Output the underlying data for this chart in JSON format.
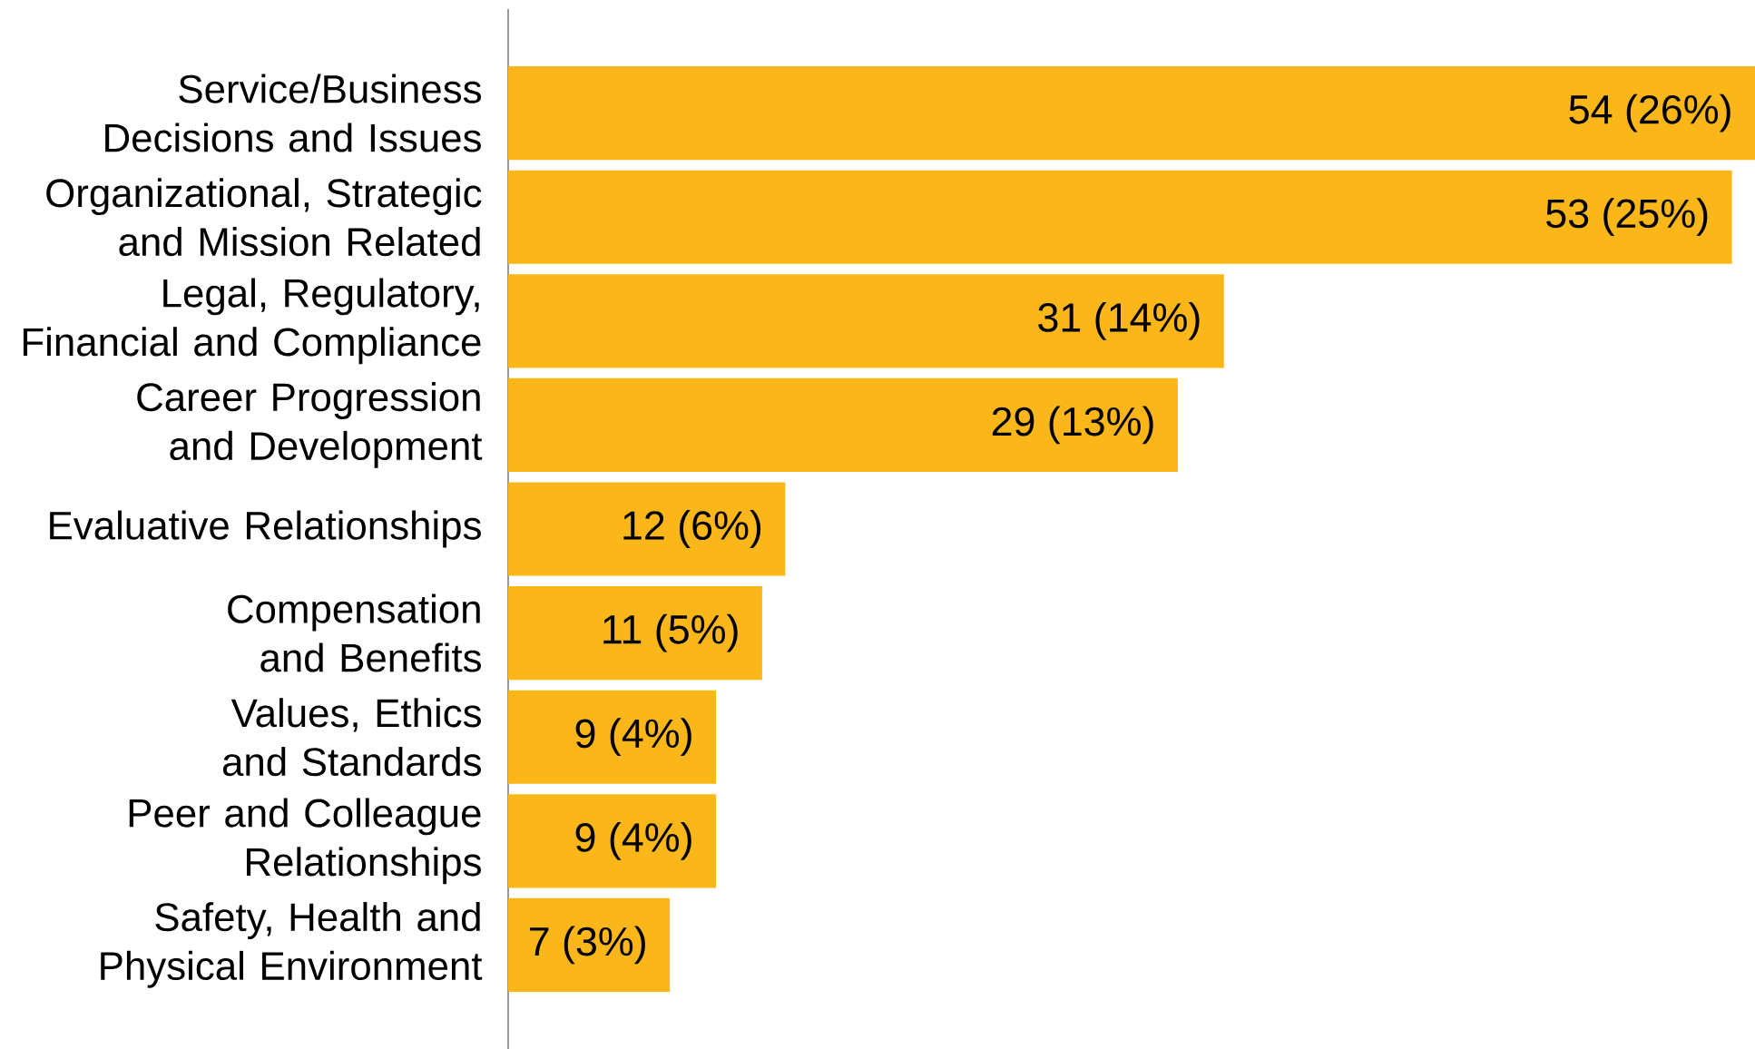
{
  "chart_data": {
    "type": "bar",
    "orientation": "horizontal",
    "tick_labels": "y",
    "color": "#fbb71a",
    "categories": [
      "Service/Business Decisions and Issues",
      "Organizational, Strategic and Mission Related",
      "Legal, Regulatory, Financial and Compliance",
      "Career Progression and Development",
      "Evaluative Relationships",
      "Compensation and Benefits",
      "Values, Ethics and Standards",
      "Peer and Colleague Relationships",
      "Safety, Health and Physical Environment"
    ],
    "values": [
      54,
      53,
      31,
      29,
      12,
      11,
      9,
      9,
      7
    ],
    "value_labels": [
      "54 (26%)",
      "53 (25%)",
      "31 (14%)",
      "29 (13%)",
      "12 (6%)",
      "11 (5%)",
      "9 (4%)",
      "9 (4%)",
      "7 (3%)"
    ]
  }
}
